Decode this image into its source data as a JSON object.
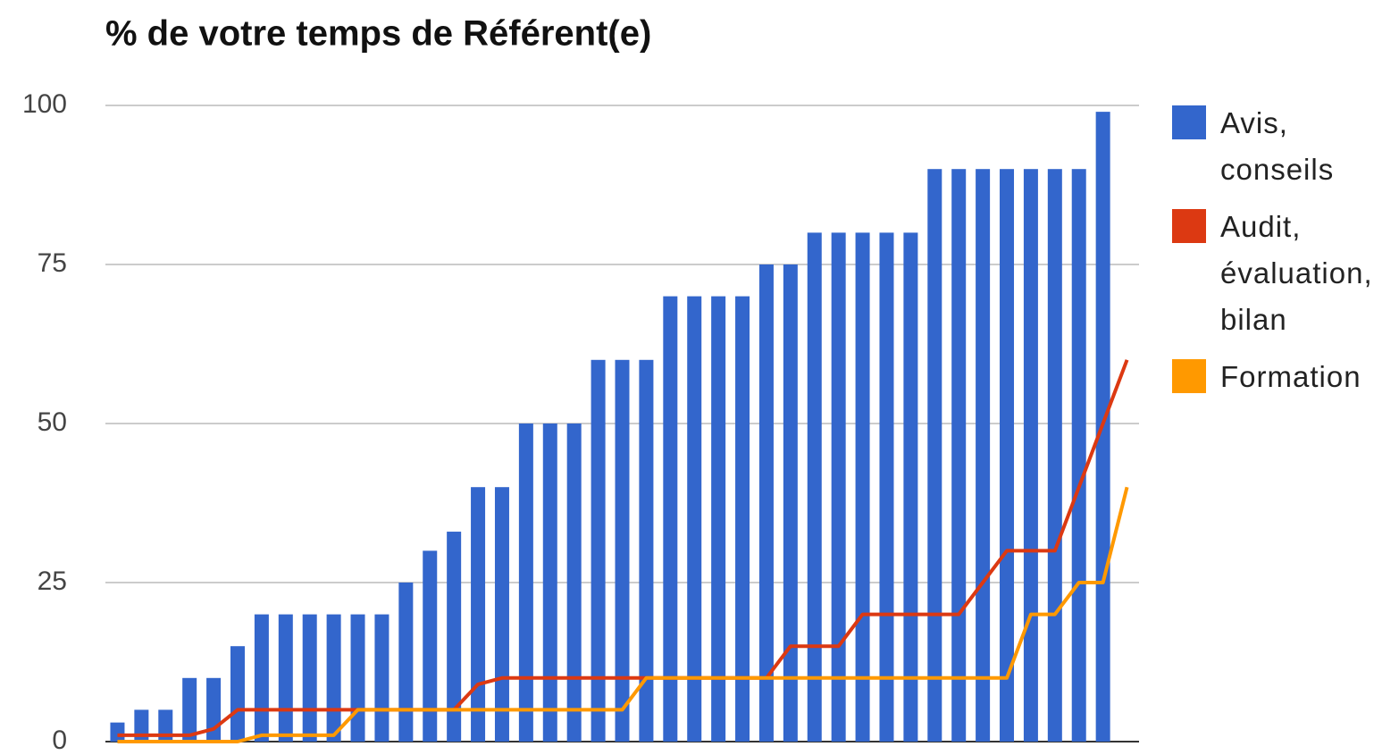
{
  "chart_data": {
    "type": "bar-line",
    "title": "% de votre temps de Référent(e)",
    "categories": [
      null,
      null,
      null,
      null,
      null,
      null,
      null,
      null,
      null,
      null,
      null,
      null,
      null,
      null,
      null,
      null,
      null,
      null,
      null,
      null,
      null,
      null,
      null,
      null,
      null,
      null,
      null,
      null,
      null,
      null,
      null,
      null,
      null,
      null,
      null,
      null,
      null,
      null,
      null,
      null,
      null,
      null,
      null
    ],
    "series": [
      {
        "name": "Avis, conseils",
        "color": "#3366cc",
        "kind": "bar",
        "values": [
          3,
          5,
          5,
          10,
          10,
          15,
          20,
          20,
          20,
          20,
          20,
          20,
          25,
          30,
          33,
          40,
          40,
          50,
          50,
          50,
          60,
          60,
          60,
          70,
          70,
          70,
          70,
          75,
          75,
          80,
          80,
          80,
          80,
          80,
          90,
          90,
          90,
          90,
          90,
          90,
          90,
          99,
          null
        ]
      },
      {
        "name": "Audit, évaluation, bilan",
        "color": "#dc3912",
        "kind": "line",
        "values": [
          1,
          1,
          1,
          1,
          2,
          5,
          5,
          5,
          5,
          5,
          5,
          5,
          5,
          5,
          5,
          9,
          10,
          10,
          10,
          10,
          10,
          10,
          10,
          10,
          10,
          10,
          10,
          10,
          15,
          15,
          15,
          20,
          20,
          20,
          20,
          20,
          25,
          30,
          30,
          30,
          40,
          50,
          60
        ]
      },
      {
        "name": "Formation",
        "color": "#ff9900",
        "kind": "line",
        "values": [
          0,
          0,
          0,
          0,
          0,
          0,
          1,
          1,
          1,
          1,
          5,
          5,
          5,
          5,
          5,
          5,
          5,
          5,
          5,
          5,
          5,
          5,
          10,
          10,
          10,
          10,
          10,
          10,
          10,
          10,
          10,
          10,
          10,
          10,
          10,
          10,
          10,
          10,
          20,
          20,
          25,
          25,
          40
        ]
      }
    ],
    "ylim": [
      0,
      100
    ],
    "yticks": [
      0,
      25,
      50,
      75,
      100
    ],
    "grid": true
  }
}
